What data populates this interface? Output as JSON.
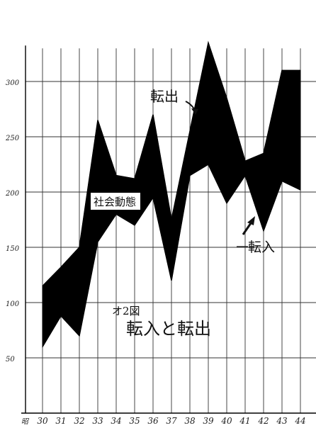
{
  "chart_data": {
    "type": "area",
    "title": "",
    "xlabel": "",
    "ylabel": "",
    "x_prefix": "昭",
    "categories": [
      "30",
      "31",
      "32",
      "33",
      "34",
      "35",
      "36",
      "37",
      "38",
      "39",
      "40",
      "41",
      "42",
      "43",
      "44"
    ],
    "ylim": [
      0,
      330
    ],
    "yticks": [
      50,
      100,
      150,
      200,
      250,
      300
    ],
    "grid": true,
    "series": [
      {
        "name": "転出",
        "values": [
          115,
          132,
          150,
          265,
          215,
          212,
          270,
          175,
          255,
          335,
          285,
          228,
          235,
          310,
          310
        ]
      },
      {
        "name": "転入",
        "values": [
          60,
          88,
          70,
          155,
          180,
          170,
          195,
          120,
          215,
          225,
          190,
          215,
          165,
          210,
          202
        ]
      }
    ],
    "fill_between_color": "#000000",
    "annotations": {
      "shaded_area_label": "社会動態",
      "figure_number": "オ2図",
      "figure_caption": "転入と転出",
      "outflow_label": "転出",
      "inflow_label": "転入"
    }
  }
}
